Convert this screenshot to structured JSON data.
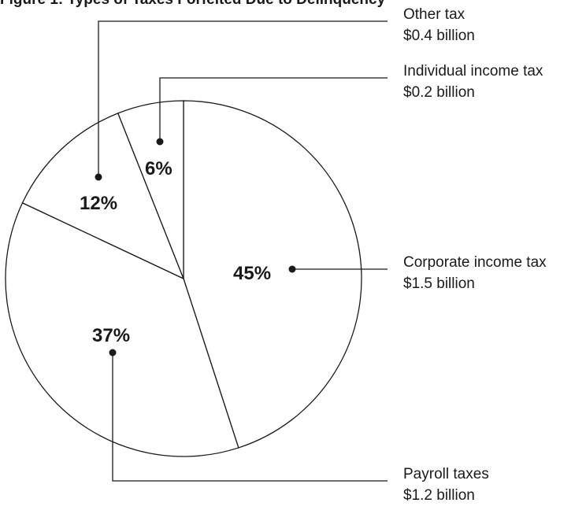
{
  "title_fragment": "Figure 1: Types of Taxes Forfeited Due to Delinquency",
  "chart_data": {
    "type": "pie",
    "title": "",
    "slices": [
      {
        "label": "Corporate income tax",
        "value_text": "$1.5 billion",
        "percent": 45,
        "percent_text": "45%"
      },
      {
        "label": "Payroll taxes",
        "value_text": "$1.2 billion",
        "percent": 37,
        "percent_text": "37%"
      },
      {
        "label": "Other tax",
        "value_text": "$0.4 billion",
        "percent": 12,
        "percent_text": "12%"
      },
      {
        "label": "Individual income tax",
        "value_text": "$0.2 billion",
        "percent": 6,
        "percent_text": "6%"
      }
    ]
  }
}
